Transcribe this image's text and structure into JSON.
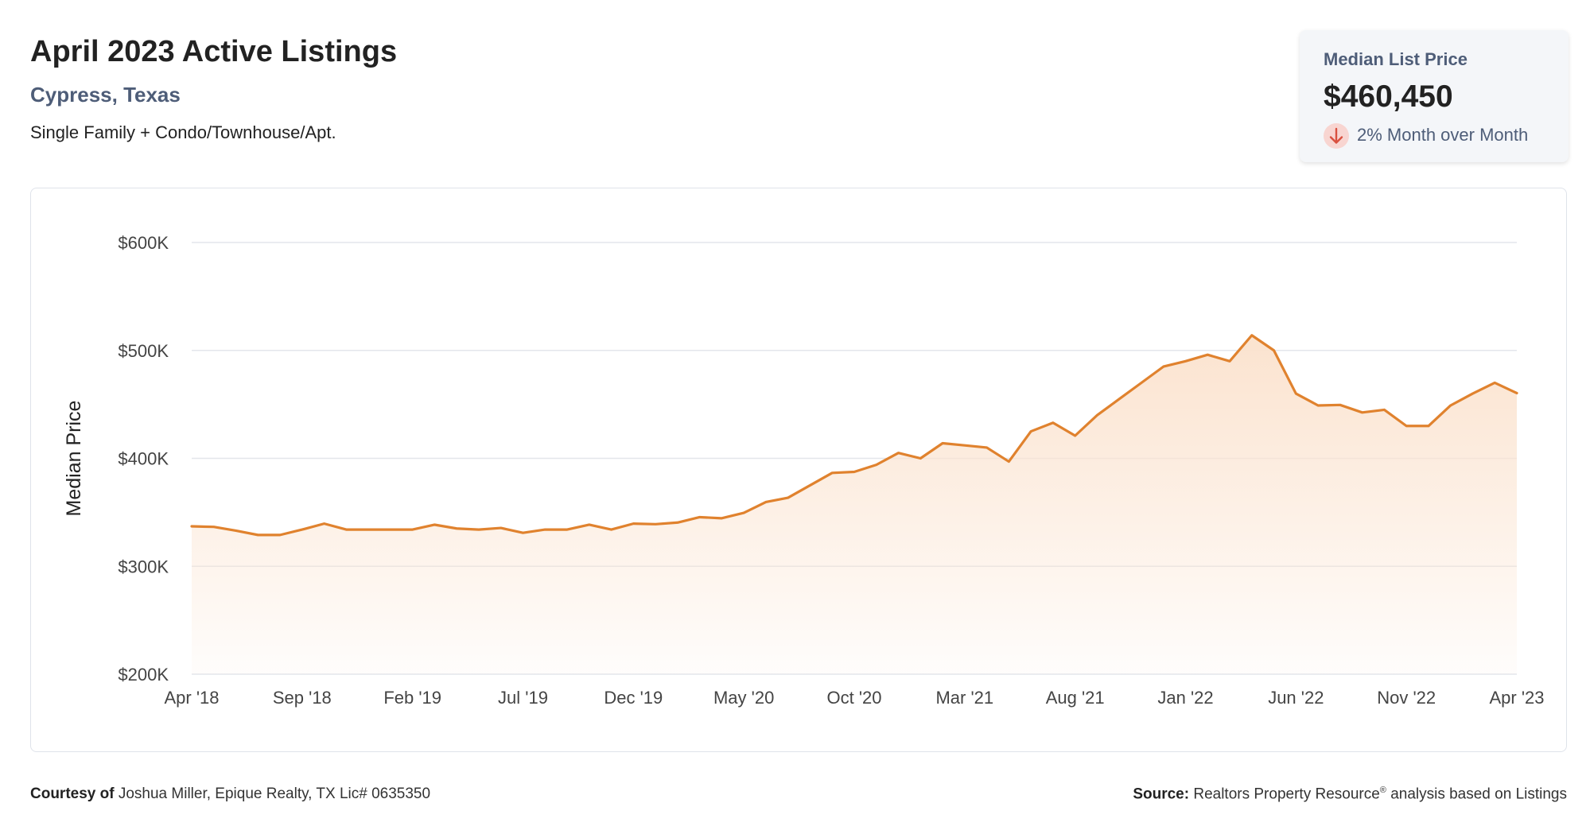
{
  "header": {
    "title": "April 2023 Active Listings",
    "location": "Cypress, Texas",
    "property_type": "Single Family + Condo/Townhouse/Apt."
  },
  "summary": {
    "label": "Median List Price",
    "value": "$460,450",
    "change_text": "2% Month over Month",
    "change_direction_icon": "arrow-down-icon"
  },
  "colors": {
    "line": "#e0822e",
    "fill_top": "#fbe3cf",
    "grid": "#e3e6eb",
    "down_badge": "#f8d5d1",
    "down_arrow": "#d9503f"
  },
  "chart_data": {
    "type": "area",
    "title": "",
    "xlabel": "",
    "ylabel": "Median Price",
    "ylim": [
      200000,
      600000
    ],
    "y_ticks": [
      200000,
      300000,
      400000,
      500000,
      600000
    ],
    "y_tick_labels": [
      "$200K",
      "$300K",
      "$400K",
      "$500K",
      "$600K"
    ],
    "x_tick_labels": [
      "Apr '18",
      "Sep '18",
      "Feb '19",
      "Jul '19",
      "Dec '19",
      "May '20",
      "Oct '20",
      "Mar '21",
      "Aug '21",
      "Jan '22",
      "Jun '22",
      "Nov '22",
      "Apr '23"
    ],
    "x_tick_every": 5,
    "grid": true,
    "legend": "none",
    "series": [
      {
        "values": [
          337000,
          336500,
          333000,
          329000,
          329000,
          334000,
          339500,
          334000,
          334000,
          334000,
          334000,
          338500,
          335000,
          334000,
          335500,
          331000,
          334000,
          334000,
          338500,
          334000,
          339500,
          339000,
          340500,
          345500,
          344500,
          349500,
          359500,
          363500,
          375000,
          386500,
          387500,
          394000,
          405000,
          400000,
          414000,
          412000,
          410000,
          397000,
          425000,
          433000,
          421000,
          440000,
          455000,
          470000,
          485000,
          490000,
          496000,
          490000,
          514000,
          500000,
          460000,
          449000,
          449500,
          442500,
          445000,
          430000,
          430000,
          449000,
          460000,
          470000,
          460450
        ]
      }
    ]
  },
  "footer": {
    "courtesy_label": "Courtesy of",
    "courtesy_text": "Joshua Miller, Epique Realty, TX Lic# 0635350",
    "source_label": "Source:",
    "source_brand": "Realtors Property Resource",
    "source_mark": "®",
    "source_text": "analysis based on Listings"
  }
}
